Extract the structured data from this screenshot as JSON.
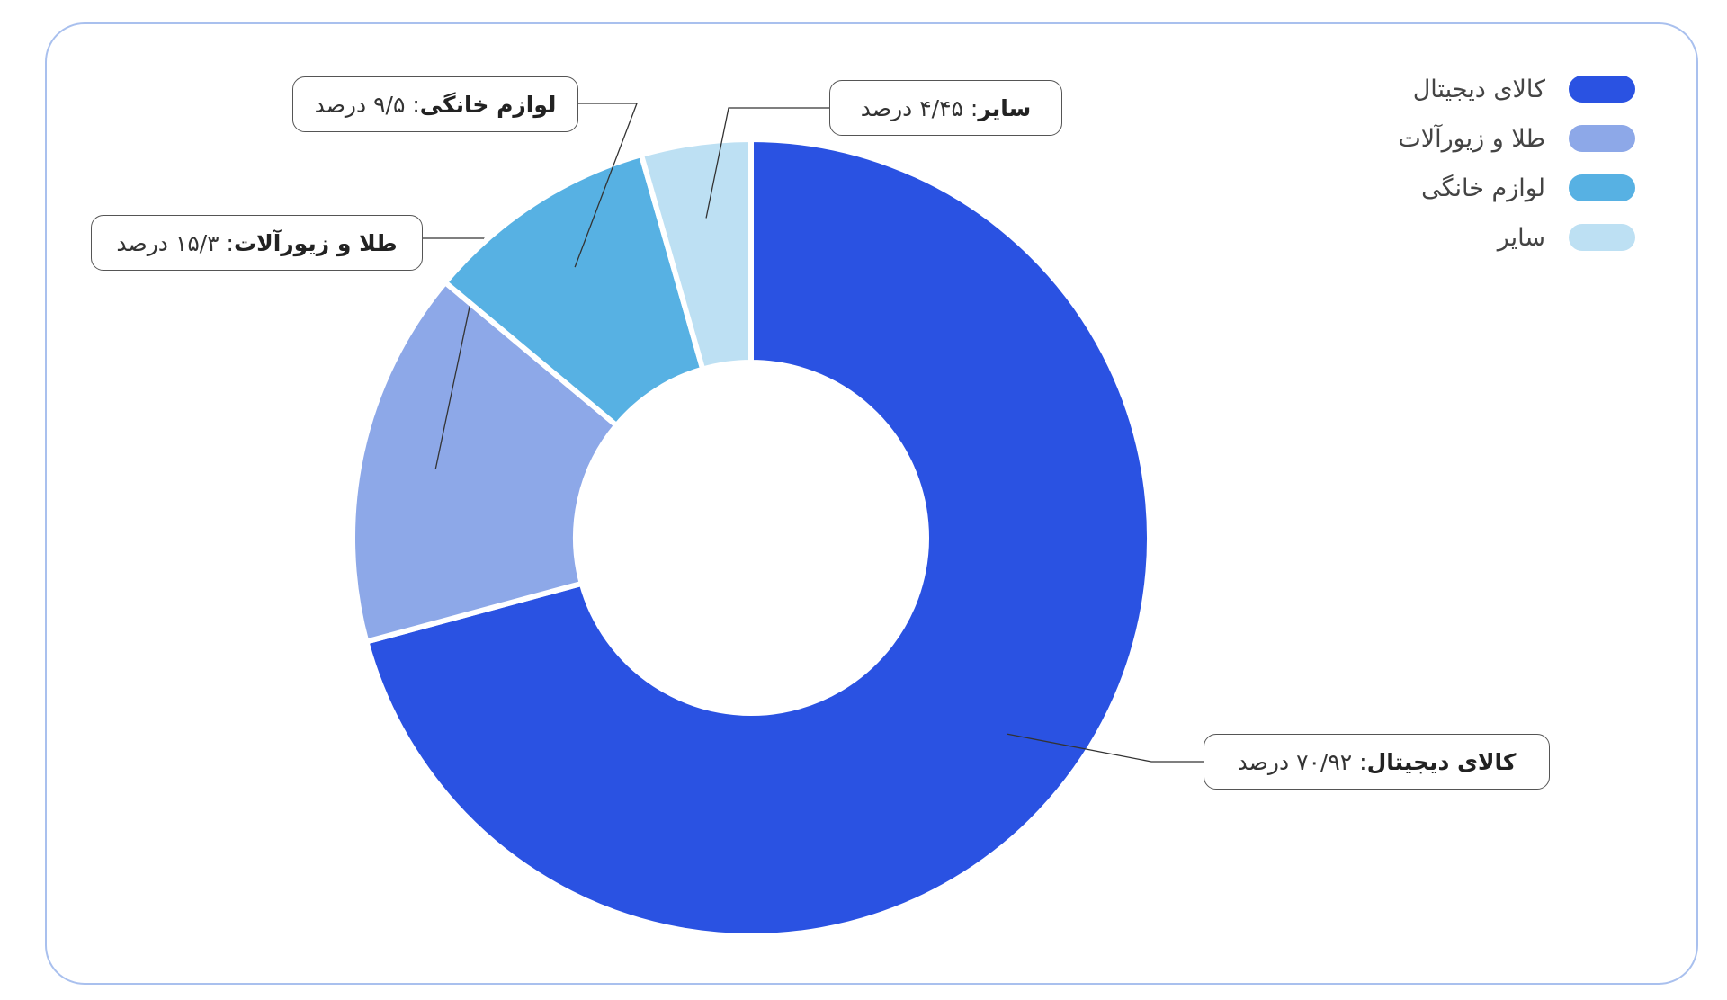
{
  "chart_data": {
    "type": "donut",
    "categories": [
      "کالای دیجیتال",
      "طلا و زیورآلات",
      "لوازم خانگی",
      "سایر"
    ],
    "values": [
      70.92,
      15.3,
      9.5,
      4.45
    ],
    "value_labels": [
      ": ۷۰/۹۲ درصد",
      ": ۱۵/۳ درصد",
      ": ۹/۵ درصد",
      ": ۴/۴۵ درصد"
    ],
    "colors": [
      "#2a52e2",
      "#8da8e8",
      "#57b1e3",
      "#bde0f3"
    ],
    "legend": "top-right"
  }
}
